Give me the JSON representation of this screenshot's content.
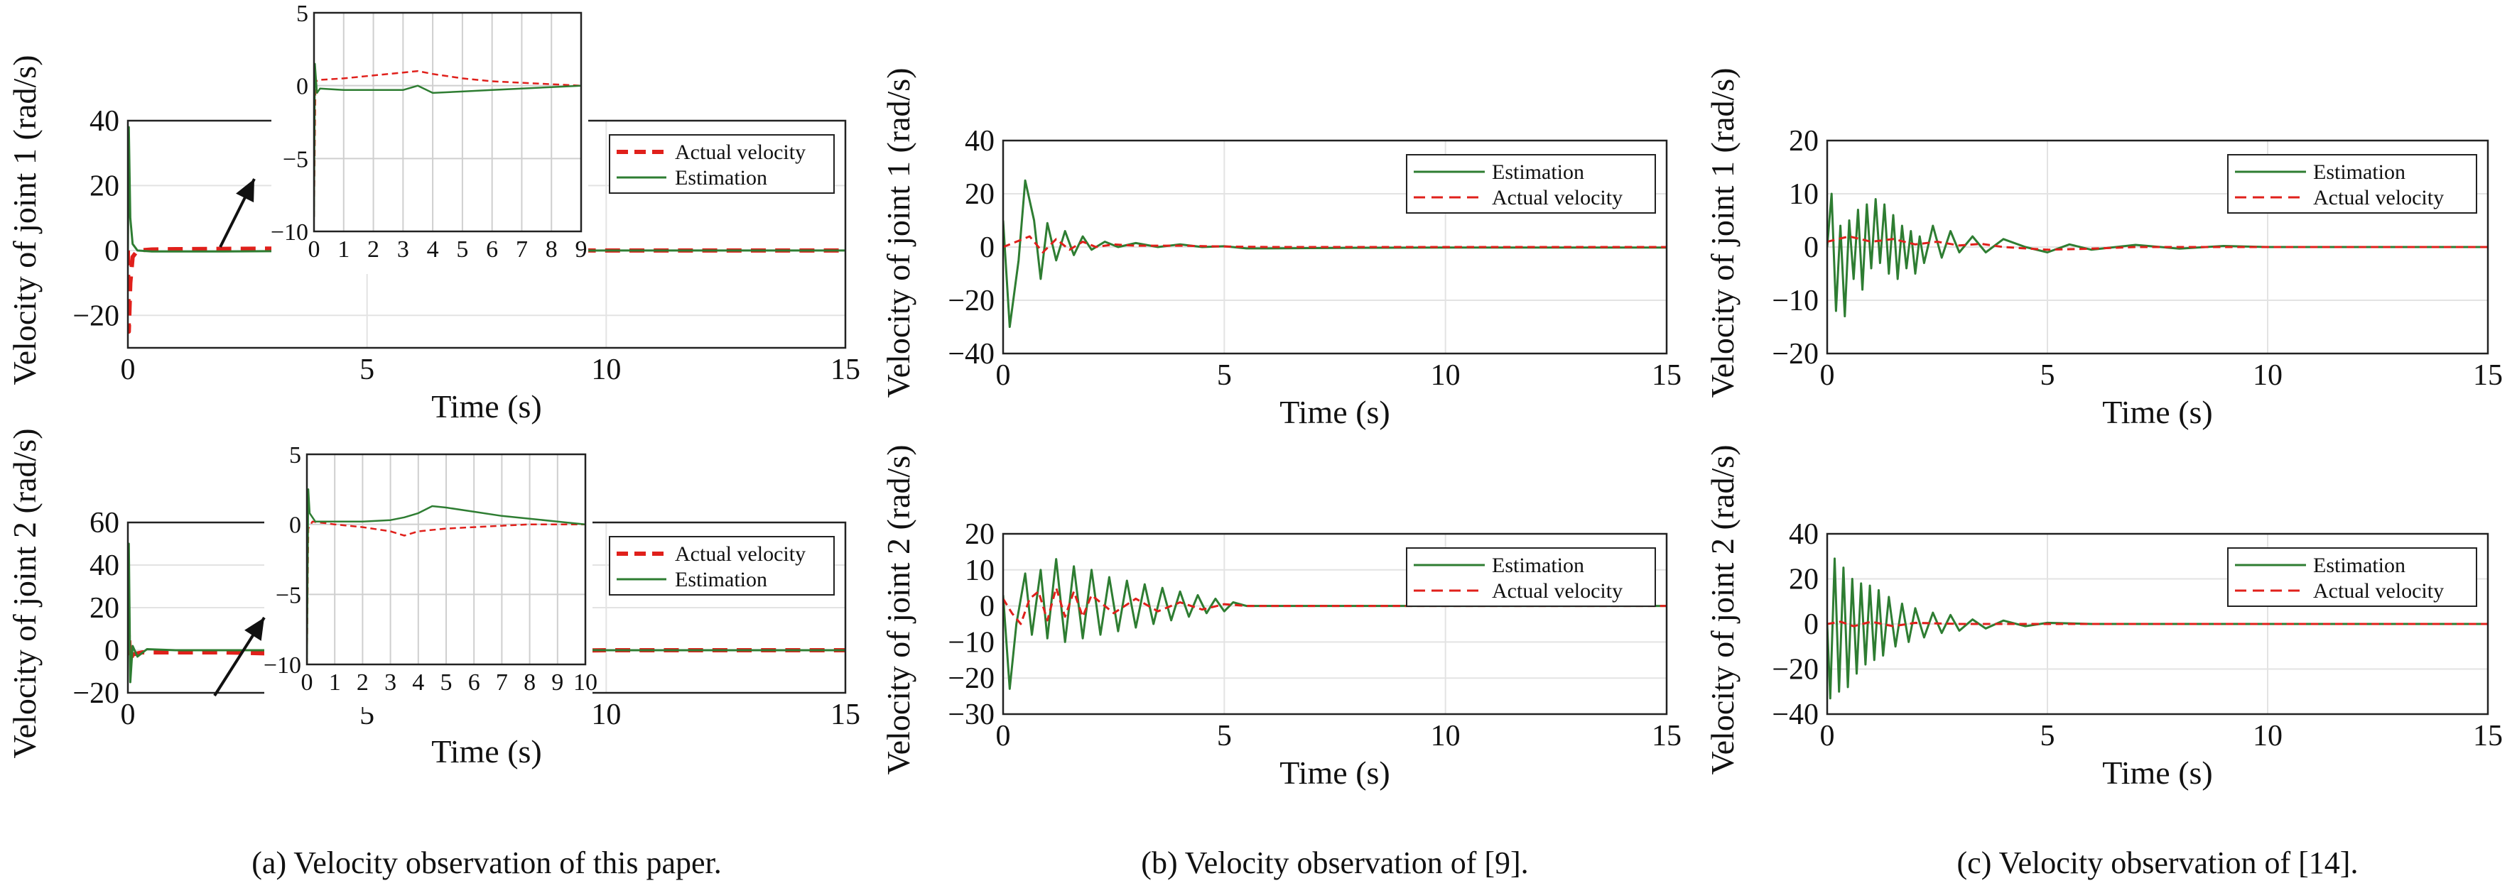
{
  "captions": {
    "a": "(a) Velocity observation of this paper.",
    "b": "(b) Velocity observation of [9].",
    "c": "(c) Velocity observation of [14]."
  },
  "colors": {
    "estimation": "#2e7d32",
    "actual": "#e0201b"
  },
  "chart_data": [
    {
      "id": "a1",
      "type": "line",
      "xlabel": "Time (s)",
      "ylabel": "Velocity of joint 1 (rad/s)",
      "xlim": [
        0,
        15
      ],
      "ylim": [
        -30,
        40
      ],
      "xticks": [
        0,
        5,
        10,
        15
      ],
      "yticks": [
        -20,
        0,
        20,
        40
      ],
      "grid": true,
      "legend_position": "top-right",
      "legend": [
        "Actual velocity",
        "Estimation"
      ],
      "series": [
        {
          "name": "Actual velocity",
          "style": "dashed",
          "x": [
            0,
            0.02,
            0.05,
            0.1,
            0.2,
            0.5,
            1,
            2,
            3.5,
            5,
            7,
            10,
            15
          ],
          "y": [
            0,
            -25,
            -10,
            -2,
            0,
            0.3,
            0.4,
            0.5,
            0.6,
            0.3,
            0.1,
            0,
            0
          ]
        },
        {
          "name": "Estimation",
          "style": "solid",
          "x": [
            0,
            0.02,
            0.05,
            0.1,
            0.2,
            0.5,
            1,
            2,
            3.5,
            5,
            7,
            10,
            15
          ],
          "y": [
            0,
            38,
            10,
            2,
            0,
            -0.3,
            -0.3,
            -0.3,
            -0.2,
            -0.4,
            -0.2,
            0,
            0
          ]
        }
      ],
      "inset": {
        "xlim": [
          0,
          9
        ],
        "ylim": [
          -10,
          5
        ],
        "xticks": [
          0,
          1,
          2,
          3,
          4,
          5,
          6,
          7,
          8,
          9
        ],
        "yticks": [
          -10,
          -5,
          0,
          5
        ],
        "series": [
          {
            "name": "Actual velocity",
            "style": "dashed",
            "x": [
              0,
              0.05,
              0.2,
              1,
              2,
              3,
              3.5,
              4,
              5,
              6,
              7,
              8,
              9
            ],
            "y": [
              -9,
              0.3,
              0.4,
              0.5,
              0.7,
              0.9,
              1.0,
              0.8,
              0.5,
              0.3,
              0.2,
              0.1,
              0
            ]
          },
          {
            "name": "Estimation",
            "style": "solid",
            "x": [
              0,
              0.03,
              0.1,
              0.2,
              1,
              2,
              3,
              3.5,
              4,
              5,
              6,
              7,
              8,
              9
            ],
            "y": [
              -9,
              1.5,
              -0.5,
              -0.2,
              -0.3,
              -0.3,
              -0.3,
              0,
              -0.5,
              -0.4,
              -0.3,
              -0.2,
              -0.1,
              0
            ]
          }
        ]
      }
    },
    {
      "id": "a2",
      "type": "line",
      "xlabel": "Time (s)",
      "ylabel": "Velocity of joint 2 (rad/s)",
      "xlim": [
        0,
        15
      ],
      "ylim": [
        -20,
        60
      ],
      "xticks": [
        0,
        5,
        10,
        15
      ],
      "yticks": [
        -20,
        0,
        20,
        40,
        60
      ],
      "grid": true,
      "legend_position": "top-right",
      "legend": [
        "Actual velocity",
        "Estimation"
      ],
      "series": [
        {
          "name": "Actual velocity",
          "style": "dashed",
          "x": [
            0,
            0.02,
            0.05,
            0.1,
            0.3,
            1,
            2,
            3,
            4,
            5,
            6,
            8,
            10,
            15
          ],
          "y": [
            0,
            8,
            -5,
            -2,
            -1,
            -1,
            -1,
            -1.5,
            -1.2,
            -1,
            -0.8,
            -0.4,
            0,
            0
          ]
        },
        {
          "name": "Estimation",
          "style": "solid",
          "x": [
            0,
            0.02,
            0.05,
            0.1,
            0.2,
            0.4,
            1,
            2,
            3,
            4,
            5,
            6,
            8,
            10,
            15
          ],
          "y": [
            0,
            50,
            -15,
            2,
            -3,
            0.5,
            0,
            0,
            0,
            1.2,
            1,
            0.7,
            0.3,
            0,
            0
          ]
        }
      ],
      "inset": {
        "xlim": [
          0,
          10
        ],
        "ylim": [
          -10,
          5
        ],
        "xticks": [
          0,
          1,
          2,
          3,
          4,
          5,
          6,
          7,
          8,
          9,
          10
        ],
        "yticks": [
          -10,
          -5,
          0,
          5
        ],
        "series": [
          {
            "name": "Actual velocity",
            "style": "dashed",
            "x": [
              0,
              0.05,
              0.2,
              1,
              2,
              3,
              3.5,
              4,
              5,
              6,
              7,
              8,
              9,
              10
            ],
            "y": [
              -10,
              -0.3,
              0.2,
              0,
              -0.2,
              -0.5,
              -0.8,
              -0.5,
              -0.3,
              -0.2,
              -0.1,
              0,
              0,
              0
            ]
          },
          {
            "name": "Estimation",
            "style": "solid",
            "x": [
              0,
              0.05,
              0.1,
              0.3,
              1,
              2,
              3,
              3.5,
              4,
              4.5,
              5,
              6,
              7,
              8,
              9,
              10
            ],
            "y": [
              -10,
              2.5,
              0.8,
              0.2,
              0.2,
              0.2,
              0.3,
              0.5,
              0.8,
              1.3,
              1.2,
              0.9,
              0.6,
              0.4,
              0.2,
              0
            ]
          }
        ]
      }
    },
    {
      "id": "b1",
      "type": "line",
      "xlabel": "Time (s)",
      "ylabel": "Velocity of joint 1 (rad/s)",
      "xlim": [
        0,
        15
      ],
      "ylim": [
        -40,
        40
      ],
      "xticks": [
        0,
        5,
        10,
        15
      ],
      "yticks": [
        -40,
        -20,
        0,
        20,
        40
      ],
      "grid": true,
      "legend_position": "top-right",
      "legend": [
        "Estimation",
        "Actual velocity"
      ],
      "series": [
        {
          "name": "Estimation",
          "style": "solid",
          "x": [
            0,
            0.15,
            0.35,
            0.5,
            0.7,
            0.85,
            1,
            1.2,
            1.4,
            1.6,
            1.8,
            2,
            2.3,
            2.6,
            3,
            3.5,
            4,
            4.5,
            5,
            5.5,
            6,
            8,
            10,
            15
          ],
          "y": [
            10,
            -30,
            -5,
            25,
            10,
            -12,
            9,
            -5,
            6,
            -3,
            4,
            -1,
            2,
            0,
            1.5,
            0,
            1,
            0,
            0.3,
            -0.5,
            -0.5,
            -0.3,
            -0.2,
            -0.2
          ]
        },
        {
          "name": "Actual velocity",
          "style": "dashed",
          "x": [
            0,
            0.3,
            0.6,
            0.9,
            1.2,
            1.5,
            1.8,
            2.1,
            2.5,
            3,
            4,
            5,
            6,
            8,
            10,
            15
          ],
          "y": [
            0,
            2,
            4,
            -2,
            3,
            -1,
            2,
            0,
            1,
            0.5,
            0.5,
            0.2,
            0,
            0,
            0,
            0
          ]
        }
      ]
    },
    {
      "id": "b2",
      "type": "line",
      "xlabel": "Time (s)",
      "ylabel": "Velocity of joint 2 (rad/s)",
      "xlim": [
        0,
        15
      ],
      "ylim": [
        -30,
        20
      ],
      "xticks": [
        0,
        5,
        10,
        15
      ],
      "yticks": [
        -30,
        -20,
        -10,
        0,
        10,
        20
      ],
      "grid": true,
      "legend_position": "top-right",
      "legend": [
        "Estimation",
        "Actual velocity"
      ],
      "series": [
        {
          "name": "Estimation",
          "style": "solid",
          "x": [
            0,
            0.15,
            0.3,
            0.5,
            0.65,
            0.85,
            1,
            1.2,
            1.4,
            1.6,
            1.8,
            2,
            2.2,
            2.4,
            2.6,
            2.8,
            3,
            3.2,
            3.4,
            3.6,
            3.8,
            4,
            4.2,
            4.4,
            4.6,
            4.8,
            5,
            5.2,
            5.5,
            6,
            8,
            10,
            15
          ],
          "y": [
            3,
            -23,
            -5,
            9,
            -8,
            10,
            -9,
            13,
            -10,
            11,
            -9,
            10,
            -8,
            8,
            -7,
            7,
            -6,
            6,
            -5,
            5,
            -4,
            4,
            -3,
            3,
            -2,
            2,
            -1.5,
            1,
            0,
            0,
            0,
            0,
            0
          ]
        },
        {
          "name": "Actual velocity",
          "style": "dashed",
          "x": [
            0,
            0.2,
            0.4,
            0.6,
            0.8,
            1,
            1.2,
            1.4,
            1.6,
            1.8,
            2,
            2.5,
            3,
            3.5,
            4,
            4.5,
            5,
            5.5,
            6,
            8,
            10,
            15
          ],
          "y": [
            2,
            -2,
            -5,
            2,
            4,
            -4,
            5,
            -3,
            4,
            -3,
            3,
            -2,
            2,
            -1.5,
            1,
            -1,
            0.5,
            0,
            0,
            0,
            0,
            0
          ]
        }
      ]
    },
    {
      "id": "c1",
      "type": "line",
      "xlabel": "Time (s)",
      "ylabel": "Velocity of joint 1 (rad/s)",
      "xlim": [
        0,
        15
      ],
      "ylim": [
        -20,
        20
      ],
      "xticks": [
        0,
        5,
        10,
        15
      ],
      "yticks": [
        -20,
        -10,
        0,
        10,
        20
      ],
      "grid": true,
      "legend_position": "top-right",
      "legend": [
        "Estimation",
        "Actual velocity"
      ],
      "series": [
        {
          "name": "Estimation",
          "style": "solid",
          "x": [
            0,
            0.1,
            0.2,
            0.3,
            0.4,
            0.5,
            0.6,
            0.7,
            0.8,
            0.9,
            1,
            1.1,
            1.2,
            1.3,
            1.4,
            1.5,
            1.6,
            1.7,
            1.8,
            1.9,
            2,
            2.1,
            2.2,
            2.4,
            2.6,
            2.8,
            3,
            3.3,
            3.6,
            4,
            4.5,
            5,
            5.5,
            6,
            7,
            8,
            9,
            10,
            15
          ],
          "y": [
            0,
            10,
            -12,
            4,
            -13,
            5,
            -6,
            7,
            -8,
            8,
            -4,
            9,
            -3,
            8,
            -5,
            6,
            -6,
            4,
            -4,
            3,
            -5,
            2,
            -3,
            4,
            -2,
            3,
            -1,
            2,
            -1,
            1.5,
            0,
            -1,
            0.5,
            -0.5,
            0.4,
            -0.3,
            0.2,
            0,
            0
          ]
        },
        {
          "name": "Actual velocity",
          "style": "dashed",
          "x": [
            0,
            0.5,
            1,
            1.5,
            2,
            2.5,
            3,
            3.5,
            4,
            5,
            6,
            7,
            8,
            10,
            15
          ],
          "y": [
            1,
            2,
            1,
            1.5,
            0.5,
            1,
            0.3,
            0.6,
            0,
            -0.5,
            -0.3,
            0,
            0,
            0,
            0
          ]
        }
      ]
    },
    {
      "id": "c2",
      "type": "line",
      "xlabel": "Time (s)",
      "ylabel": "Velocity of joint 2 (rad/s)",
      "xlim": [
        0,
        15
      ],
      "ylim": [
        -40,
        40
      ],
      "xticks": [
        0,
        5,
        10,
        15
      ],
      "yticks": [
        -40,
        -20,
        0,
        20,
        40
      ],
      "grid": true,
      "legend_position": "top-right",
      "legend": [
        "Estimation",
        "Actual velocity"
      ],
      "series": [
        {
          "name": "Estimation",
          "style": "solid",
          "x": [
            0,
            0.07,
            0.17,
            0.27,
            0.37,
            0.47,
            0.57,
            0.67,
            0.77,
            0.87,
            0.97,
            1.07,
            1.17,
            1.27,
            1.4,
            1.55,
            1.7,
            1.85,
            2,
            2.2,
            2.4,
            2.6,
            2.8,
            3,
            3.3,
            3.6,
            4,
            4.5,
            5,
            6,
            8,
            10,
            15
          ],
          "y": [
            0,
            -33,
            29,
            -30,
            25,
            -28,
            20,
            -22,
            18,
            -18,
            17,
            -16,
            15,
            -14,
            12,
            -10,
            9,
            -8,
            7,
            -6,
            5,
            -4,
            4,
            -3,
            2,
            -2,
            1.5,
            -1,
            0.5,
            0,
            0,
            0,
            0
          ]
        },
        {
          "name": "Actual velocity",
          "style": "dashed",
          "x": [
            0,
            0.3,
            0.6,
            1,
            1.5,
            2,
            3,
            4,
            5,
            6,
            8,
            10,
            15
          ],
          "y": [
            0,
            1,
            -1,
            1,
            -1,
            0.5,
            0,
            0,
            0,
            0,
            0,
            0,
            0
          ]
        }
      ]
    }
  ]
}
